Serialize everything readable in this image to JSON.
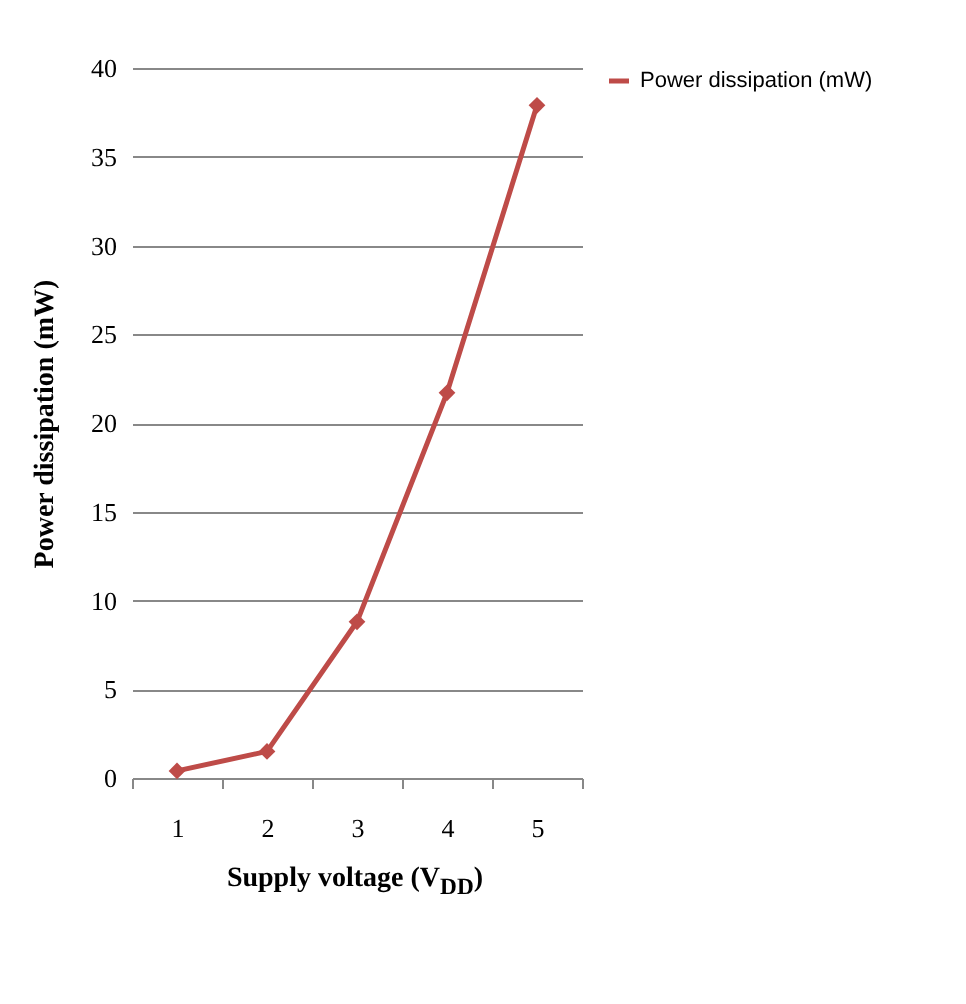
{
  "chart_data": {
    "type": "line",
    "xlabel": "Supply voltage (V$_{DD}$)",
    "ylabel": "Power dissipation (mW)",
    "categories": [
      "1",
      "2",
      "3",
      "4",
      "5"
    ],
    "series": [
      {
        "name": "Power dissipation (mW)",
        "color": "#be4b48",
        "values": [
          0.4,
          1.5,
          8.8,
          21.7,
          37.9
        ]
      }
    ],
    "ylim": [
      0,
      40
    ],
    "yticks": [
      0,
      5,
      10,
      15,
      20,
      25,
      30,
      35,
      40
    ],
    "grid": "y",
    "legend": "right",
    "marker": "diamond"
  }
}
